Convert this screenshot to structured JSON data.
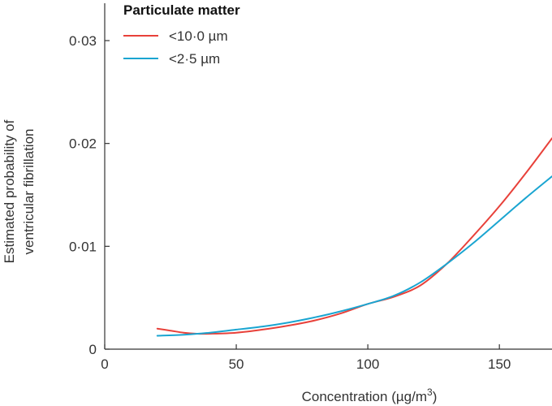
{
  "chart_data": {
    "type": "line",
    "title": "",
    "xlabel": "Concentration (µg/m",
    "xlabel_superscript": "3",
    "xlabel_suffix": ")",
    "ylabel_lines": [
      "Estimated probability of",
      "ventricular fibrillation"
    ],
    "xlim": [
      0,
      170
    ],
    "ylim": [
      0,
      0.033
    ],
    "x_ticks": [
      0,
      50,
      100,
      150
    ],
    "x_tick_labels": [
      "0",
      "50",
      "100",
      "150"
    ],
    "y_ticks": [
      0,
      0.01,
      0.02,
      0.03
    ],
    "y_tick_labels": [
      "0",
      "0·01",
      "0·02",
      "0·03"
    ],
    "grid": false,
    "legend": {
      "title": "Particulate matter",
      "placement": "top-left"
    },
    "series": [
      {
        "name": "<10·0 µm",
        "color": "#e8413a",
        "x": [
          20,
          25,
          30,
          35,
          40,
          50,
          60,
          70,
          80,
          90,
          100,
          110,
          120,
          130,
          140,
          150,
          160,
          170
        ],
        "y": [
          0.002,
          0.0018,
          0.0016,
          0.0015,
          0.0015,
          0.0016,
          0.0019,
          0.0023,
          0.0028,
          0.0035,
          0.0044,
          0.0051,
          0.0062,
          0.0083,
          0.011,
          0.0139,
          0.0171,
          0.0205
        ]
      },
      {
        "name": "<2·5 µm",
        "color": "#1aa5d1",
        "x": [
          20,
          30,
          40,
          50,
          60,
          70,
          80,
          90,
          100,
          110,
          120,
          130,
          140,
          150,
          160,
          170
        ],
        "y": [
          0.0013,
          0.0014,
          0.0016,
          0.0019,
          0.0022,
          0.0026,
          0.0031,
          0.0037,
          0.0044,
          0.0052,
          0.0065,
          0.0083,
          0.0103,
          0.0125,
          0.0147,
          0.0168
        ]
      }
    ]
  }
}
